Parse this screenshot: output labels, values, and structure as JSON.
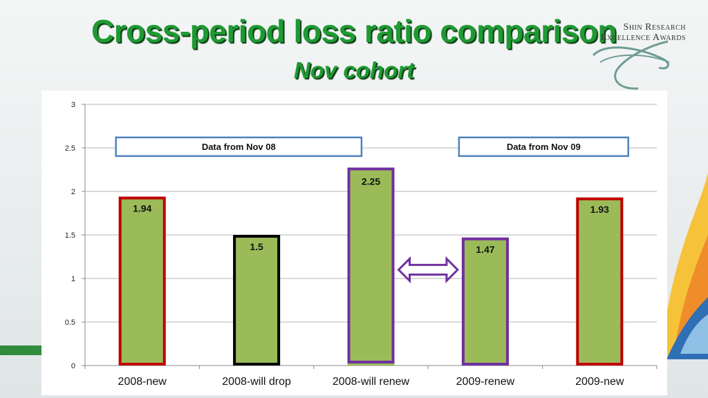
{
  "slide": {
    "title": "Cross-period loss ratio comparison",
    "subtitle": "Nov cohort"
  },
  "logo": {
    "line1": "Shin Research",
    "line2": "Excellence Awards"
  },
  "colors": {
    "title": "#1f9a33",
    "bar_fill": "#9bbb59",
    "outline_red": "#c00000",
    "outline_black": "#000000",
    "outline_purple": "#7030a0",
    "period_box": "#4f81bd",
    "arrow": "#7030a0"
  },
  "chart_data": {
    "type": "bar",
    "categories": [
      "2008-new",
      "2008-will drop",
      "2008-will renew",
      "2009-renew",
      "2009-new"
    ],
    "values": [
      1.94,
      1.5,
      2.25,
      1.47,
      1.93
    ],
    "data_labels": [
      "1.94",
      "1.5",
      "2.25",
      "1.47",
      "1.93"
    ],
    "bar_outlines": [
      "red",
      "black",
      "purple",
      "purple",
      "red"
    ],
    "ylim": [
      0,
      3
    ],
    "yticks": [
      "0",
      "0.5",
      "1",
      "1.5",
      "2",
      "2.5",
      "3"
    ],
    "grid": true,
    "annotations": [
      {
        "text": "Data from Nov 08",
        "spans": [
          "2008-new",
          "2008-will renew"
        ]
      },
      {
        "text": "Data from Nov 09",
        "spans": [
          "2009-renew",
          "2009-new"
        ]
      }
    ],
    "arrow": {
      "type": "double-headed",
      "between": [
        "2008-will renew",
        "2009-renew"
      ]
    }
  }
}
